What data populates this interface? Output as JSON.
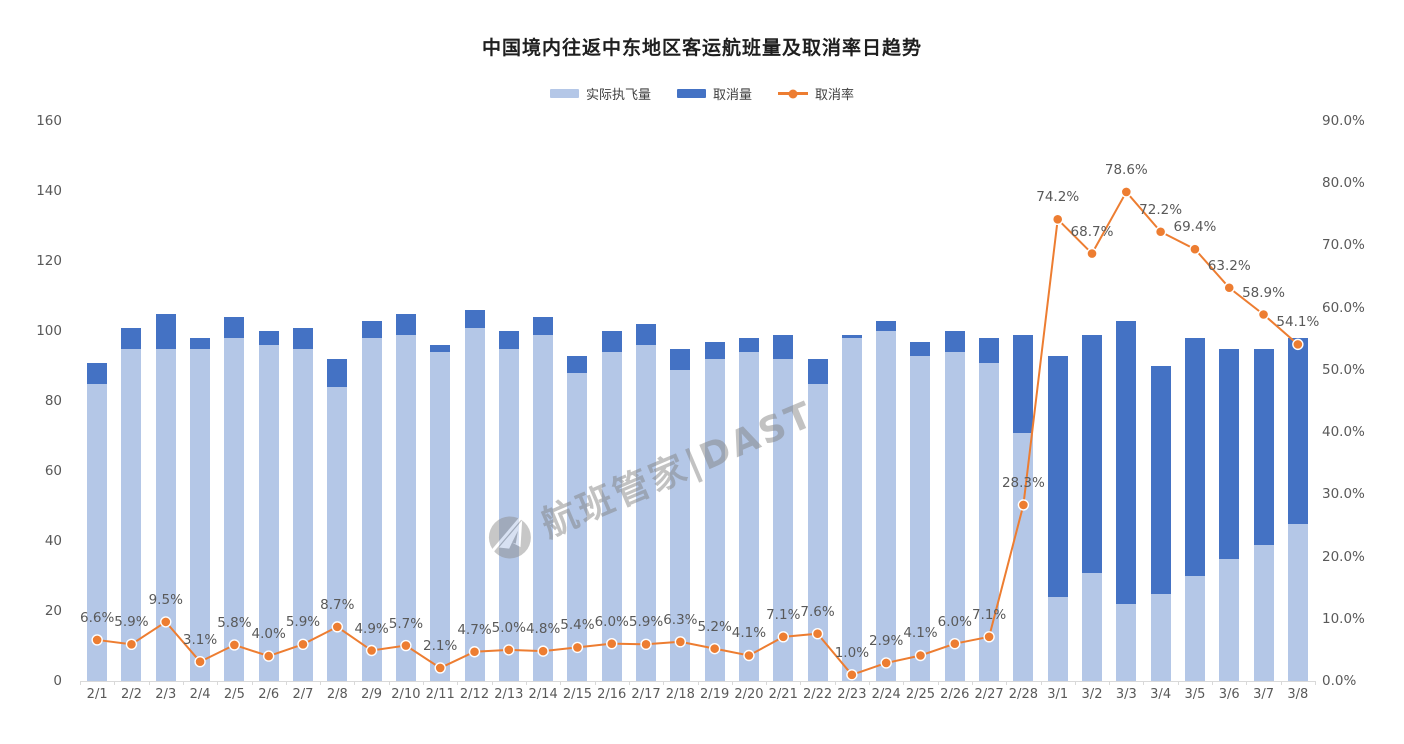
{
  "watermark": {
    "text": "航班管家|DAST"
  },
  "colors": {
    "actual_bar": "#B4C7E7",
    "cancelled_bar": "#4472C4",
    "rate_line": "#ED7D31",
    "axis_text": "#595959",
    "title_text": "#1F1F1F",
    "axis_line": "#D9D9D9"
  },
  "chart_data": {
    "type": "combo",
    "title": "中国境内往返中东地区客运航班量及取消率日趋势",
    "grid": false,
    "legend_position": "top",
    "categories": [
      "2/1",
      "2/2",
      "2/3",
      "2/4",
      "2/5",
      "2/6",
      "2/7",
      "2/8",
      "2/9",
      "2/10",
      "2/11",
      "2/12",
      "2/13",
      "2/14",
      "2/15",
      "2/16",
      "2/17",
      "2/18",
      "2/19",
      "2/20",
      "2/21",
      "2/22",
      "2/23",
      "2/24",
      "2/25",
      "2/26",
      "2/27",
      "2/28",
      "3/1",
      "3/2",
      "3/3",
      "3/4",
      "3/5",
      "3/6",
      "3/7",
      "3/8"
    ],
    "series": [
      {
        "name": "实际执飞量",
        "type": "bar",
        "stack": "flights",
        "color": "#B4C7E7",
        "axis": "left",
        "values": [
          85,
          95,
          95,
          95,
          98,
          96,
          95,
          84,
          98,
          99,
          94,
          101,
          95,
          99,
          88,
          94,
          96,
          89,
          92,
          94,
          92,
          85,
          98,
          100,
          93,
          94,
          91,
          71,
          24,
          31,
          22,
          25,
          30,
          35,
          39,
          45
        ]
      },
      {
        "name": "取消量",
        "type": "bar",
        "stack": "flights",
        "color": "#4472C4",
        "axis": "left",
        "values": [
          6,
          6,
          10,
          3,
          6,
          4,
          6,
          8,
          5,
          6,
          2,
          5,
          5,
          5,
          5,
          6,
          6,
          6,
          5,
          4,
          7,
          7,
          1,
          3,
          4,
          6,
          7,
          28,
          69,
          68,
          81,
          65,
          68,
          60,
          56,
          53
        ]
      },
      {
        "name": "取消率",
        "type": "line",
        "color": "#ED7D31",
        "axis": "right",
        "values": [
          6.6,
          5.9,
          9.5,
          3.1,
          5.8,
          4.0,
          5.9,
          8.7,
          4.9,
          5.7,
          2.1,
          4.7,
          5.0,
          4.8,
          5.4,
          6.0,
          5.9,
          6.3,
          5.2,
          4.1,
          7.1,
          7.6,
          1.0,
          2.9,
          4.1,
          6.0,
          7.1,
          28.3,
          74.2,
          68.7,
          78.6,
          72.2,
          69.4,
          63.2,
          58.9,
          54.1
        ],
        "labels": [
          "6.6%",
          "5.9%",
          "9.5%",
          "3.1%",
          "5.8%",
          "4.0%",
          "5.9%",
          "8.7%",
          "4.9%",
          "5.7%",
          "2.1%",
          "4.7%",
          "5.0%",
          "4.8%",
          "5.4%",
          "6.0%",
          "5.9%",
          "6.3%",
          "5.2%",
          "4.1%",
          "7.1%",
          "7.6%",
          "1.0%",
          "2.9%",
          "4.1%",
          "6.0%",
          "7.1%",
          "28.3%",
          "74.2%",
          "68.7%",
          "78.6%",
          "72.2%",
          "69.4%",
          "63.2%",
          "58.9%",
          "54.1%"
        ]
      }
    ],
    "left_axis": {
      "min": 0,
      "max": 160,
      "step": 20,
      "ticks": [
        "0",
        "20",
        "40",
        "60",
        "80",
        "100",
        "120",
        "140",
        "160"
      ]
    },
    "right_axis": {
      "min": 0,
      "max": 90,
      "step": 10,
      "ticks": [
        "0.0%",
        "10.0%",
        "20.0%",
        "30.0%",
        "40.0%",
        "50.0%",
        "60.0%",
        "70.0%",
        "80.0%",
        "90.0%"
      ]
    }
  }
}
